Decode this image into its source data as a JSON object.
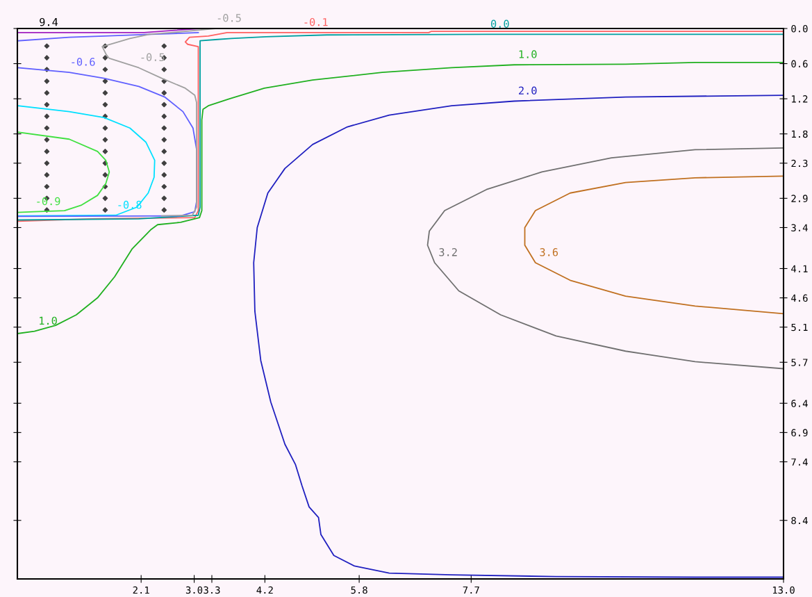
{
  "chart_data": {
    "type": "line",
    "xlim": [
      0,
      13
    ],
    "ylim": [
      9.4,
      0
    ],
    "xticks": [
      2.1,
      {
        "value": 3,
        "label": "3.0"
      },
      3.3,
      4.2,
      5.8,
      7.7,
      {
        "value": 13,
        "label": "13.0"
      }
    ],
    "yticks": [
      {
        "value": 0,
        "label": "0.0"
      },
      0.6,
      1.2,
      1.8,
      2.3,
      2.9,
      3.4,
      4.1,
      4.6,
      5.1,
      5.7,
      6.4,
      6.9,
      7.4,
      8.4
    ],
    "grid": false,
    "series": [
      {
        "color": "#ff6060",
        "x": [
          13.0,
          7.02,
          6.98,
          4.83,
          3.56,
          3.24,
          2.92,
          2.85,
          2.89,
          3.07,
          3.07,
          3.01,
          1.27,
          0.01
        ],
        "values": [
          0.05,
          0.05,
          0.07,
          0.07,
          0.07,
          0.13,
          0.15,
          0.23,
          0.27,
          0.31,
          3.11,
          3.23,
          3.25,
          3.29
        ]
      },
      {
        "color": "#00a0a0",
        "x": [
          13.0,
          7.96,
          5.25,
          4.22,
          3.63,
          3.36,
          3.1,
          3.1,
          3.07,
          2.06,
          0.01
        ],
        "values": [
          0.1,
          0.1,
          0.11,
          0.14,
          0.17,
          0.19,
          0.21,
          3.05,
          3.19,
          3.25,
          3.27
        ]
      },
      {
        "color": "#20b020",
        "x": [
          13.0,
          11.5,
          10.32,
          8.43,
          7.37,
          6.19,
          5.01,
          4.19,
          3.6,
          3.24,
          3.15,
          3.13,
          3.13,
          3.09,
          2.77,
          2.38,
          2.26,
          1.95,
          1.65,
          1.36,
          1.0,
          0.65,
          0.29,
          0
        ],
        "values": [
          0.58,
          0.58,
          0.61,
          0.62,
          0.67,
          0.75,
          0.88,
          1.02,
          1.2,
          1.32,
          1.38,
          1.56,
          3.11,
          3.23,
          3.31,
          3.35,
          3.44,
          3.76,
          4.24,
          4.6,
          4.89,
          5.07,
          5.17,
          5.21
        ]
      },
      {
        "color": "#2020c0",
        "x": [
          13.0,
          10.32,
          8.43,
          7.37,
          6.31,
          5.6,
          5.01,
          4.54,
          4.25,
          4.07,
          4.01,
          4.03,
          4.13,
          4.3,
          4.54,
          4.72,
          4.83,
          4.95,
          5.11,
          5.15,
          5.37,
          5.72,
          6.31,
          7.37,
          9.14,
          11.5,
          13.0
        ],
        "values": [
          1.14,
          1.17,
          1.24,
          1.32,
          1.48,
          1.68,
          1.98,
          2.39,
          2.81,
          3.4,
          4.0,
          4.83,
          5.67,
          6.38,
          7.1,
          7.45,
          7.81,
          8.17,
          8.35,
          8.64,
          9.0,
          9.18,
          9.3,
          9.33,
          9.36,
          9.37,
          9.37
        ]
      },
      {
        "color": "#707070",
        "x": [
          13.0,
          11.5,
          10.08,
          8.9,
          7.96,
          7.25,
          6.99,
          6.96,
          7.08,
          7.49,
          8.2,
          9.14,
          10.32,
          11.5,
          13.0
        ],
        "values": [
          2.04,
          2.07,
          2.21,
          2.45,
          2.75,
          3.11,
          3.46,
          3.7,
          4.0,
          4.48,
          4.89,
          5.25,
          5.51,
          5.69,
          5.81
        ]
      },
      {
        "color": "#c07020",
        "x": [
          13.0,
          11.5,
          10.32,
          9.38,
          8.79,
          8.61,
          8.61,
          8.79,
          9.38,
          10.32,
          11.5,
          13.0
        ],
        "values": [
          2.52,
          2.55,
          2.63,
          2.81,
          3.11,
          3.4,
          3.7,
          4.0,
          4.3,
          4.57,
          4.74,
          4.87
        ]
      },
      {
        "color": "#40e040",
        "x": [
          0.01,
          0.88,
          1.36,
          1.5,
          1.56,
          1.5,
          1.36,
          1.08,
          0.8,
          0.29,
          0.01
        ],
        "values": [
          1.77,
          1.89,
          2.1,
          2.25,
          2.45,
          2.65,
          2.85,
          3.02,
          3.11,
          3.13,
          3.14
        ]
      },
      {
        "color": "#00e0ff",
        "x": [
          0.01,
          0.88,
          1.47,
          1.91,
          2.18,
          2.33,
          2.32,
          2.22,
          2.03,
          1.67,
          0.01
        ],
        "values": [
          1.32,
          1.42,
          1.52,
          1.7,
          1.94,
          2.25,
          2.54,
          2.81,
          3.05,
          3.19,
          3.2
        ]
      },
      {
        "color": "#6060ff",
        "x": [
          0.01,
          0.88,
          1.47,
          2.26,
          3.07
        ],
        "values": [
          0.21,
          0.15,
          0.13,
          0.1,
          0.07
        ]
      },
      {
        "color": "#6060ff",
        "x": [
          0.01,
          0.88,
          1.47,
          2.06,
          2.5,
          2.81,
          2.98,
          3.04,
          3.04,
          3.01,
          2.77,
          0.01
        ],
        "values": [
          0.67,
          0.75,
          0.85,
          0.99,
          1.17,
          1.42,
          1.7,
          2.06,
          2.96,
          3.13,
          3.2,
          3.21
        ]
      },
      {
        "color": "#a0a0a0",
        "x": [
          3.36,
          2.85,
          2.24,
          1.91,
          1.44,
          1.51,
          1.56,
          2.06,
          2.45,
          2.85,
          3.01,
          3.04,
          3.04,
          2.97,
          2.45
        ],
        "values": [
          0.0,
          0.05,
          0.1,
          0.17,
          0.31,
          0.45,
          0.51,
          0.67,
          0.85,
          1.02,
          1.14,
          1.26,
          3.05,
          3.19,
          3.2
        ]
      },
      {
        "color": "#a020c0",
        "x": [
          0.01,
          2.15,
          2.54,
          3.13
        ],
        "values": [
          0.07,
          0.07,
          0.04,
          0.0
        ]
      },
      {
        "type": "scatter",
        "marker": "diamond",
        "color": "#404040",
        "x": [
          0.5,
          0.5,
          0.5,
          0.5,
          0.5,
          0.5,
          0.5,
          0.5,
          0.5,
          0.5,
          0.5,
          0.5,
          0.5,
          0.5,
          0.5
        ],
        "values": [
          0.3,
          0.5,
          0.7,
          0.9,
          1.1,
          1.3,
          1.5,
          1.7,
          1.9,
          2.1,
          2.3,
          2.5,
          2.7,
          2.9,
          3.1
        ]
      },
      {
        "type": "scatter",
        "marker": "diamond",
        "color": "#404040",
        "x": [
          1.49,
          1.49,
          1.49,
          1.49,
          1.49,
          1.49,
          1.49,
          1.49,
          1.49,
          1.49,
          1.49,
          1.49,
          1.49,
          1.49,
          1.49
        ],
        "values": [
          0.3,
          0.5,
          0.7,
          0.9,
          1.1,
          1.3,
          1.5,
          1.7,
          1.9,
          2.1,
          2.3,
          2.5,
          2.7,
          2.9,
          3.1
        ]
      },
      {
        "type": "scatter",
        "marker": "diamond",
        "color": "#404040",
        "x": [
          2.49,
          2.49,
          2.49,
          2.49,
          2.49,
          2.49,
          2.49,
          2.49,
          2.49,
          2.49,
          2.49,
          2.49,
          2.49,
          2.49,
          2.49
        ],
        "values": [
          0.3,
          0.5,
          0.7,
          0.9,
          1.1,
          1.3,
          1.5,
          1.7,
          1.9,
          2.1,
          2.3,
          2.5,
          2.7,
          2.9,
          3.1
        ]
      }
    ],
    "annotations": [
      "9.4",
      {
        "text": "-0.5",
        "x": 3.36,
        "y": 0.0
      },
      {
        "text": "-0.1",
        "x": 4.83,
        "y": 0.07
      },
      {
        "text": "-0.9",
        "x": 0.29,
        "y": 3.13
      },
      {
        "text": "-0.8",
        "x": 1.67,
        "y": 3.19
      },
      {
        "text": "-0.6",
        "x": 0.88,
        "y": 0.75
      },
      {
        "text": "-0.5",
        "x": 2.06,
        "y": 0.67
      },
      {
        "text": "0.0",
        "x": 7.96,
        "y": 0.1
      },
      {
        "text": "1.0",
        "x": 8.43,
        "y": 0.62
      },
      {
        "text": "1.0",
        "x": 0.29,
        "y": 5.17
      },
      {
        "text": "2.0",
        "x": 8.43,
        "y": 1.24
      },
      {
        "text": "3.2",
        "x": 7.08,
        "y": 4.0
      },
      {
        "text": "3.6",
        "x": 8.79,
        "y": 4.0
      }
    ]
  }
}
